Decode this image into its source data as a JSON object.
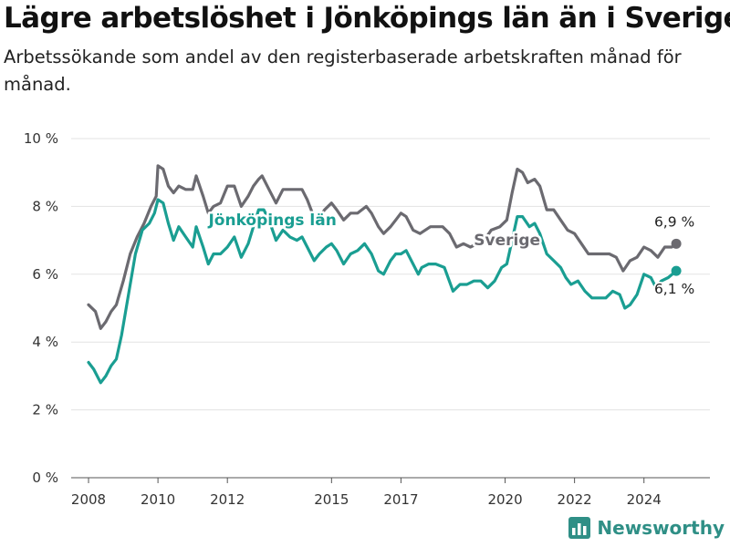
{
  "title": "Lägre arbetslöshet i Jönköpings län än i Sverige",
  "subtitle": "Arbetssökande som andel av den registerbaserade arbetskraften månad för månad.",
  "brand": "Newsworthy",
  "colors": {
    "sverige": "#6b6a70",
    "jonkoping": "#1a9e92",
    "grid": "#e3e3e3",
    "brand": "#2f8f86"
  },
  "chart_data": {
    "type": "line",
    "title": "Lägre arbetslöshet i Jönköpings län än i Sverige",
    "subtitle": "Arbetssökande som andel av den registerbaserade arbetskraften månad för månad.",
    "xlabel": "",
    "ylabel": "",
    "xlim": [
      2007.5,
      2025.9
    ],
    "ylim": [
      0,
      10
    ],
    "yticks": [
      0,
      2,
      4,
      6,
      8,
      10
    ],
    "ytick_labels": [
      "0 %",
      "2 %",
      "4 %",
      "6 %",
      "8 %",
      "10 %"
    ],
    "xticks": [
      2008,
      2010,
      2012,
      2015,
      2017,
      2020,
      2022,
      2024
    ],
    "xtick_labels": [
      "2008",
      "2010",
      "2012",
      "2015",
      "2017",
      "2020",
      "2022",
      "2024"
    ],
    "grid": "horizontal",
    "legend": "inline labels",
    "series": [
      {
        "name": "Sverige",
        "end_label": "6,9 %",
        "points": [
          [
            2008.0,
            5.1
          ],
          [
            2008.2,
            4.9
          ],
          [
            2008.35,
            4.4
          ],
          [
            2008.5,
            4.6
          ],
          [
            2008.65,
            4.9
          ],
          [
            2008.8,
            5.1
          ],
          [
            2009.0,
            5.8
          ],
          [
            2009.2,
            6.6
          ],
          [
            2009.4,
            7.1
          ],
          [
            2009.6,
            7.5
          ],
          [
            2009.8,
            8.0
          ],
          [
            2009.95,
            8.3
          ],
          [
            2010.0,
            9.2
          ],
          [
            2010.15,
            9.1
          ],
          [
            2010.3,
            8.6
          ],
          [
            2010.45,
            8.4
          ],
          [
            2010.6,
            8.6
          ],
          [
            2010.8,
            8.5
          ],
          [
            2011.0,
            8.5
          ],
          [
            2011.1,
            8.9
          ],
          [
            2011.3,
            8.3
          ],
          [
            2011.45,
            7.8
          ],
          [
            2011.6,
            8.0
          ],
          [
            2011.8,
            8.1
          ],
          [
            2012.0,
            8.6
          ],
          [
            2012.2,
            8.6
          ],
          [
            2012.4,
            8.0
          ],
          [
            2012.6,
            8.3
          ],
          [
            2012.75,
            8.6
          ],
          [
            2012.9,
            8.8
          ],
          [
            2013.0,
            8.9
          ],
          [
            2013.2,
            8.5
          ],
          [
            2013.4,
            8.1
          ],
          [
            2013.6,
            8.5
          ],
          [
            2013.8,
            8.5
          ],
          [
            2014.0,
            8.5
          ],
          [
            2014.15,
            8.5
          ],
          [
            2014.3,
            8.2
          ],
          [
            2014.45,
            7.8
          ],
          [
            2014.6,
            7.6
          ],
          [
            2014.8,
            7.9
          ],
          [
            2015.0,
            8.1
          ],
          [
            2015.15,
            7.9
          ],
          [
            2015.35,
            7.6
          ],
          [
            2015.55,
            7.8
          ],
          [
            2015.75,
            7.8
          ],
          [
            2016.0,
            8.0
          ],
          [
            2016.15,
            7.8
          ],
          [
            2016.35,
            7.4
          ],
          [
            2016.5,
            7.2
          ],
          [
            2016.7,
            7.4
          ],
          [
            2016.85,
            7.6
          ],
          [
            2017.0,
            7.8
          ],
          [
            2017.15,
            7.7
          ],
          [
            2017.35,
            7.3
          ],
          [
            2017.55,
            7.2
          ],
          [
            2017.7,
            7.3
          ],
          [
            2017.85,
            7.4
          ],
          [
            2018.0,
            7.4
          ],
          [
            2018.2,
            7.4
          ],
          [
            2018.4,
            7.2
          ],
          [
            2018.6,
            6.8
          ],
          [
            2018.8,
            6.9
          ],
          [
            2019.0,
            6.8
          ],
          [
            2019.2,
            6.9
          ],
          [
            2019.4,
            7.0
          ],
          [
            2019.6,
            7.3
          ],
          [
            2019.85,
            7.4
          ],
          [
            2020.05,
            7.6
          ],
          [
            2020.2,
            8.4
          ],
          [
            2020.35,
            9.1
          ],
          [
            2020.5,
            9.0
          ],
          [
            2020.65,
            8.7
          ],
          [
            2020.85,
            8.8
          ],
          [
            2021.0,
            8.6
          ],
          [
            2021.2,
            7.9
          ],
          [
            2021.4,
            7.9
          ],
          [
            2021.6,
            7.6
          ],
          [
            2021.8,
            7.3
          ],
          [
            2022.0,
            7.2
          ],
          [
            2022.2,
            6.9
          ],
          [
            2022.4,
            6.6
          ],
          [
            2022.6,
            6.6
          ],
          [
            2022.8,
            6.6
          ],
          [
            2023.0,
            6.6
          ],
          [
            2023.2,
            6.5
          ],
          [
            2023.4,
            6.1
          ],
          [
            2023.6,
            6.4
          ],
          [
            2023.8,
            6.5
          ],
          [
            2024.0,
            6.8
          ],
          [
            2024.2,
            6.7
          ],
          [
            2024.4,
            6.5
          ],
          [
            2024.6,
            6.8
          ],
          [
            2024.8,
            6.8
          ],
          [
            2024.93,
            6.9
          ]
        ]
      },
      {
        "name": "Jönköpings län",
        "end_label": "6,1 %",
        "points": [
          [
            2008.0,
            3.4
          ],
          [
            2008.15,
            3.2
          ],
          [
            2008.35,
            2.8
          ],
          [
            2008.5,
            3.0
          ],
          [
            2008.65,
            3.3
          ],
          [
            2008.8,
            3.5
          ],
          [
            2008.95,
            4.2
          ],
          [
            2009.15,
            5.4
          ],
          [
            2009.35,
            6.6
          ],
          [
            2009.55,
            7.3
          ],
          [
            2009.75,
            7.5
          ],
          [
            2009.9,
            7.8
          ],
          [
            2010.0,
            8.2
          ],
          [
            2010.15,
            8.1
          ],
          [
            2010.3,
            7.5
          ],
          [
            2010.45,
            7.0
          ],
          [
            2010.6,
            7.4
          ],
          [
            2010.8,
            7.1
          ],
          [
            2011.0,
            6.8
          ],
          [
            2011.1,
            7.4
          ],
          [
            2011.3,
            6.8
          ],
          [
            2011.45,
            6.3
          ],
          [
            2011.6,
            6.6
          ],
          [
            2011.8,
            6.6
          ],
          [
            2012.0,
            6.8
          ],
          [
            2012.2,
            7.1
          ],
          [
            2012.4,
            6.5
          ],
          [
            2012.6,
            6.9
          ],
          [
            2012.75,
            7.4
          ],
          [
            2012.9,
            7.9
          ],
          [
            2013.05,
            7.9
          ],
          [
            2013.2,
            7.6
          ],
          [
            2013.4,
            7.0
          ],
          [
            2013.6,
            7.3
          ],
          [
            2013.8,
            7.1
          ],
          [
            2014.0,
            7.0
          ],
          [
            2014.15,
            7.1
          ],
          [
            2014.3,
            6.8
          ],
          [
            2014.5,
            6.4
          ],
          [
            2014.65,
            6.6
          ],
          [
            2014.85,
            6.8
          ],
          [
            2015.0,
            6.9
          ],
          [
            2015.15,
            6.7
          ],
          [
            2015.35,
            6.3
          ],
          [
            2015.55,
            6.6
          ],
          [
            2015.75,
            6.7
          ],
          [
            2015.95,
            6.9
          ],
          [
            2016.15,
            6.6
          ],
          [
            2016.35,
            6.1
          ],
          [
            2016.5,
            6.0
          ],
          [
            2016.7,
            6.4
          ],
          [
            2016.85,
            6.6
          ],
          [
            2017.0,
            6.6
          ],
          [
            2017.15,
            6.7
          ],
          [
            2017.35,
            6.3
          ],
          [
            2017.5,
            6.0
          ],
          [
            2017.6,
            6.2
          ],
          [
            2017.8,
            6.3
          ],
          [
            2018.0,
            6.3
          ],
          [
            2018.25,
            6.2
          ],
          [
            2018.5,
            5.5
          ],
          [
            2018.7,
            5.7
          ],
          [
            2018.9,
            5.7
          ],
          [
            2019.1,
            5.8
          ],
          [
            2019.3,
            5.8
          ],
          [
            2019.5,
            5.6
          ],
          [
            2019.7,
            5.8
          ],
          [
            2019.9,
            6.2
          ],
          [
            2020.05,
            6.3
          ],
          [
            2020.2,
            7.0
          ],
          [
            2020.35,
            7.7
          ],
          [
            2020.5,
            7.7
          ],
          [
            2020.7,
            7.4
          ],
          [
            2020.85,
            7.5
          ],
          [
            2021.0,
            7.2
          ],
          [
            2021.2,
            6.6
          ],
          [
            2021.4,
            6.4
          ],
          [
            2021.6,
            6.2
          ],
          [
            2021.75,
            5.9
          ],
          [
            2021.9,
            5.7
          ],
          [
            2022.1,
            5.8
          ],
          [
            2022.3,
            5.5
          ],
          [
            2022.5,
            5.3
          ],
          [
            2022.7,
            5.3
          ],
          [
            2022.9,
            5.3
          ],
          [
            2023.1,
            5.5
          ],
          [
            2023.3,
            5.4
          ],
          [
            2023.45,
            5.0
          ],
          [
            2023.6,
            5.1
          ],
          [
            2023.8,
            5.4
          ],
          [
            2024.0,
            6.0
          ],
          [
            2024.2,
            5.9
          ],
          [
            2024.35,
            5.6
          ],
          [
            2024.5,
            5.8
          ],
          [
            2024.7,
            5.9
          ],
          [
            2024.93,
            6.1
          ]
        ]
      }
    ],
    "annotations": [
      {
        "text": "Jönköpings län",
        "series": "Jönköpings län",
        "x": 2013.3,
        "y": 7.45
      },
      {
        "text": "Sverige",
        "series": "Sverige",
        "x": 2019.1,
        "y": 6.85
      },
      {
        "text": "6,9 %",
        "series": "Sverige",
        "x": 2024.93,
        "y": 6.9
      },
      {
        "text": "6,1 %",
        "series": "Jönköpings län",
        "x": 2024.93,
        "y": 6.1
      }
    ]
  }
}
